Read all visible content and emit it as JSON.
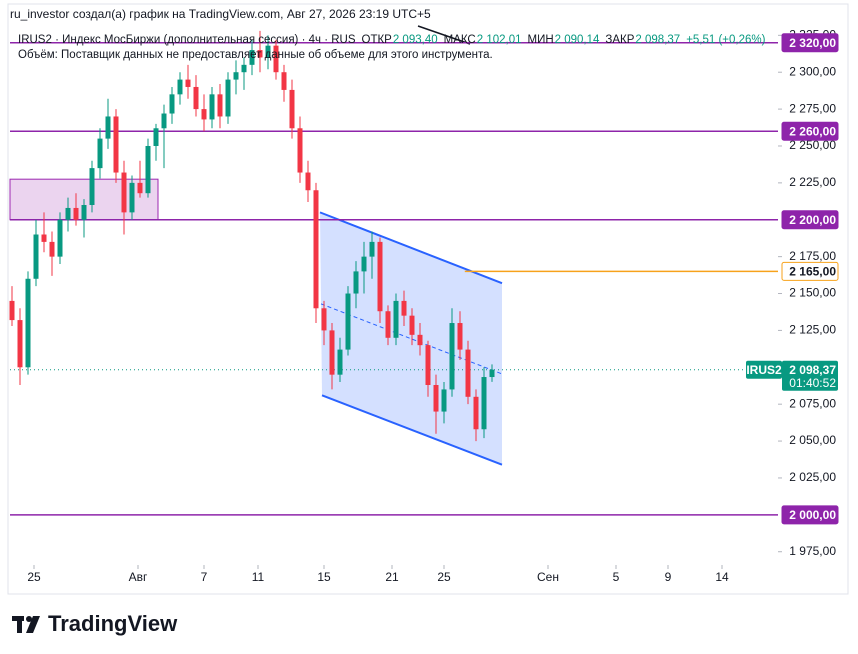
{
  "header": {
    "attribution": "ru_investor создал(а) график на TradingView.com, Авг 27, 2026 23:19 UTC+5"
  },
  "chart_data": {
    "type": "candlestick",
    "legend": {
      "title": "IRUS2 · Индекс МосБиржи (дополнительная сессия) · 4ч · RUS",
      "items": [
        {
          "label": "ОТКР",
          "value": "2 093,40"
        },
        {
          "label": "МАКС",
          "value": "2 102,01"
        },
        {
          "label": "МИН",
          "value": "2 090,14"
        },
        {
          "label": "ЗАКР",
          "value": "2 098,37"
        }
      ],
      "change": "+5,51 (+0,26%)",
      "volume_note": "Объём: Поставщик данных не предоставляет данные об объеме для этого инструмента."
    },
    "up_color": "#089981",
    "down_color": "#f23645",
    "ohlc": [
      [
        2145,
        2155,
        2128,
        2132
      ],
      [
        2132,
        2140,
        2088,
        2100
      ],
      [
        2100,
        2165,
        2095,
        2160
      ],
      [
        2160,
        2200,
        2155,
        2190
      ],
      [
        2190,
        2205,
        2178,
        2185
      ],
      [
        2185,
        2192,
        2162,
        2175
      ],
      [
        2175,
        2205,
        2170,
        2200
      ],
      [
        2200,
        2215,
        2192,
        2208
      ],
      [
        2208,
        2218,
        2196,
        2200
      ],
      [
        2200,
        2214,
        2188,
        2210
      ],
      [
        2210,
        2240,
        2205,
        2235
      ],
      [
        2235,
        2262,
        2228,
        2255
      ],
      [
        2255,
        2282,
        2248,
        2270
      ],
      [
        2270,
        2275,
        2225,
        2232
      ],
      [
        2232,
        2240,
        2190,
        2205
      ],
      [
        2205,
        2230,
        2200,
        2225
      ],
      [
        2225,
        2240,
        2215,
        2218
      ],
      [
        2218,
        2255,
        2215,
        2250
      ],
      [
        2250,
        2265,
        2240,
        2262
      ],
      [
        2262,
        2278,
        2235,
        2272
      ],
      [
        2272,
        2290,
        2265,
        2285
      ],
      [
        2285,
        2300,
        2278,
        2295
      ],
      [
        2295,
        2305,
        2282,
        2290
      ],
      [
        2290,
        2298,
        2270,
        2275
      ],
      [
        2275,
        2285,
        2260,
        2268
      ],
      [
        2268,
        2290,
        2262,
        2285
      ],
      [
        2285,
        2292,
        2262,
        2270
      ],
      [
        2270,
        2300,
        2265,
        2295
      ],
      [
        2295,
        2308,
        2285,
        2300
      ],
      [
        2300,
        2310,
        2288,
        2305
      ],
      [
        2305,
        2322,
        2298,
        2315
      ],
      [
        2315,
        2328,
        2300,
        2310
      ],
      [
        2310,
        2325,
        2302,
        2318
      ],
      [
        2318,
        2322,
        2295,
        2300
      ],
      [
        2300,
        2305,
        2280,
        2288
      ],
      [
        2288,
        2295,
        2255,
        2262
      ],
      [
        2262,
        2270,
        2225,
        2232
      ],
      [
        2232,
        2240,
        2212,
        2220
      ],
      [
        2220,
        2225,
        2130,
        2140
      ],
      [
        2140,
        2145,
        2115,
        2125
      ],
      [
        2125,
        2130,
        2085,
        2095
      ],
      [
        2095,
        2120,
        2090,
        2112
      ],
      [
        2112,
        2155,
        2108,
        2150
      ],
      [
        2150,
        2172,
        2140,
        2165
      ],
      [
        2165,
        2185,
        2150,
        2175
      ],
      [
        2175,
        2192,
        2160,
        2185
      ],
      [
        2185,
        2188,
        2130,
        2138
      ],
      [
        2138,
        2142,
        2115,
        2120
      ],
      [
        2120,
        2150,
        2115,
        2145
      ],
      [
        2145,
        2152,
        2128,
        2135
      ],
      [
        2135,
        2140,
        2115,
        2122
      ],
      [
        2122,
        2130,
        2108,
        2115
      ],
      [
        2115,
        2118,
        2080,
        2088
      ],
      [
        2088,
        2095,
        2055,
        2070
      ],
      [
        2070,
        2090,
        2062,
        2085
      ],
      [
        2085,
        2140,
        2080,
        2130
      ],
      [
        2130,
        2138,
        2105,
        2112
      ],
      [
        2112,
        2118,
        2075,
        2080
      ],
      [
        2080,
        2085,
        2050,
        2058
      ],
      [
        2058,
        2100,
        2052,
        2093.4
      ],
      [
        2093.4,
        2102.01,
        2090.14,
        2098.37
      ]
    ],
    "xlim": [
      -0.25,
      95.75
    ],
    "xticks": [
      {
        "value": 2.75,
        "label": "25"
      },
      {
        "value": 15.75,
        "label": "Авг"
      },
      {
        "value": 24,
        "label": "7"
      },
      {
        "value": 30.75,
        "label": "11"
      },
      {
        "value": 39,
        "label": "15"
      },
      {
        "value": 47.5,
        "label": "21"
      },
      {
        "value": 54,
        "label": "25"
      },
      {
        "value": 67,
        "label": "Сен"
      },
      {
        "value": 75.5,
        "label": "5"
      },
      {
        "value": 82,
        "label": "9"
      },
      {
        "value": 88.75,
        "label": "14"
      }
    ],
    "ylim": [
      1966,
      2332
    ],
    "yticks": [
      {
        "value": 1975,
        "label": "1 975,00"
      },
      {
        "value": 2025,
        "label": "2 025,00"
      },
      {
        "value": 2050,
        "label": "2 050,00"
      },
      {
        "value": 2075,
        "label": "2 075,00"
      },
      {
        "value": 2125,
        "label": "2 125,00"
      },
      {
        "value": 2150,
        "label": "2 150,00"
      },
      {
        "value": 2175,
        "label": "2 175,00"
      },
      {
        "value": 2225,
        "label": "2 225,00"
      },
      {
        "value": 2250,
        "label": "2 250,00"
      },
      {
        "value": 2275,
        "label": "2 275,00"
      },
      {
        "value": 2300,
        "label": "2 300,00"
      },
      {
        "value": 2325,
        "label": "2 325,00"
      }
    ],
    "grid": false,
    "zones": [
      {
        "x": [
          -0.25,
          18.25
        ],
        "y": [
          2200,
          2227.5
        ],
        "color": "#9c27b0"
      }
    ],
    "channel": {
      "upper": [
        [
          38.5,
          2205
        ],
        [
          61.25,
          2157
        ]
      ],
      "lower": [
        [
          38.75,
          2081
        ],
        [
          61.25,
          2034
        ]
      ],
      "color": "#2962ff"
    },
    "levels": [
      {
        "value": 2320,
        "label": "2 320,00",
        "color": "#8e24aa",
        "style": "filled"
      },
      {
        "value": 2260,
        "label": "2 260,00",
        "color": "#8e24aa",
        "style": "filled"
      },
      {
        "value": 2200,
        "label": "2 200,00",
        "color": "#8e24aa",
        "style": "filled"
      },
      {
        "value": 2165,
        "label": "2 165,00",
        "color": "#f7a21b",
        "style": "outline",
        "from": 56.6
      },
      {
        "value": 2000,
        "label": "2 000,00",
        "color": "#8e24aa",
        "style": "filled"
      }
    ],
    "last_price": {
      "value": 2098.37,
      "label": "2 098,37",
      "symbol": "IRUS2",
      "countdown": "01:40:52",
      "color": "#089981"
    }
  },
  "footer": {
    "brand": "TradingView"
  }
}
